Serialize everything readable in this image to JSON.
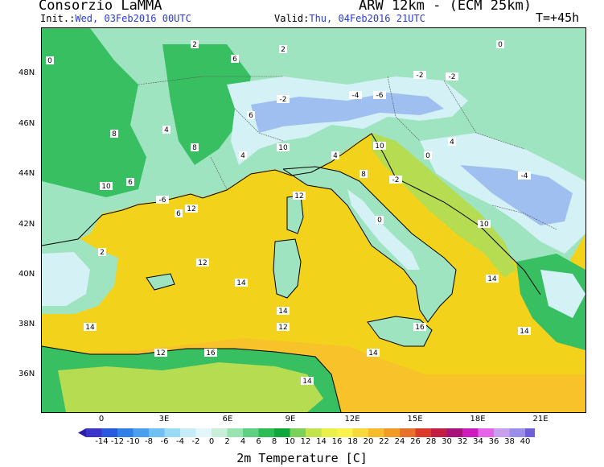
{
  "header": {
    "title_left": "Consorzio LaMMA",
    "title_right": "ARW 12km - (ECM 25km)",
    "init_label": "Init.:",
    "init_value": "Wed, 03Feb2016 00UTC",
    "valid_label": "Valid:",
    "valid_value": "Thu, 04Feb2016 21UTC",
    "forecast_time": "T=+45h"
  },
  "axes": {
    "lat_labels": [
      "48N",
      "46N",
      "44N",
      "42N",
      "40N",
      "38N",
      "36N"
    ],
    "lon_labels": [
      "0",
      "3E",
      "6E",
      "9E",
      "12E",
      "15E",
      "18E",
      "21E"
    ]
  },
  "colorbar": {
    "title": "2m Temperature [C]",
    "levels": [
      "-14",
      "-12",
      "-10",
      "-8",
      "-6",
      "-4",
      "-2",
      "0",
      "2",
      "4",
      "6",
      "8",
      "10",
      "12",
      "14",
      "16",
      "18",
      "20",
      "22",
      "24",
      "26",
      "28",
      "30",
      "32",
      "34",
      "36",
      "38",
      "40"
    ],
    "colors": [
      "#3a34c8",
      "#2858dc",
      "#2f7fe6",
      "#4aa0ee",
      "#6ec1f2",
      "#9adaf4",
      "#c6ecf8",
      "#e2f6fb",
      "#c8efd8",
      "#99e3b0",
      "#5fcf83",
      "#2ebc56",
      "#10a83d",
      "#7cd15a",
      "#c2e34c",
      "#eaf04a",
      "#f9f24a",
      "#f7d93a",
      "#f5bb2a",
      "#f19a26",
      "#e8702a",
      "#dc3b2c",
      "#c31d45",
      "#a8107a",
      "#cc1cbe",
      "#e463e6",
      "#c8a0ee",
      "#9a8ee8",
      "#6f5fd8"
    ],
    "under_color": "#2a20a8",
    "over_color": "#5d45c8"
  },
  "map": {
    "sea_color": "#f3d21c",
    "land_colors": {
      "cold": "#9fbff0",
      "cool": "#d4f1f6",
      "mild": "#9fe4c0",
      "green": "#37bf62",
      "warm": "#b6dc52"
    },
    "contour_labels": [
      "12",
      "12",
      "12",
      "12",
      "12",
      "14",
      "14",
      "14",
      "14",
      "14",
      "14",
      "14",
      "16",
      "16",
      "10",
      "10",
      "10",
      "10",
      "8",
      "8",
      "8",
      "6",
      "6",
      "6",
      "6",
      "4",
      "4",
      "4",
      "4",
      "2",
      "2",
      "2",
      "0",
      "0",
      "0",
      "0",
      "-2",
      "-2",
      "-2",
      "-2",
      "-4",
      "-4",
      "-6",
      "-6"
    ]
  }
}
